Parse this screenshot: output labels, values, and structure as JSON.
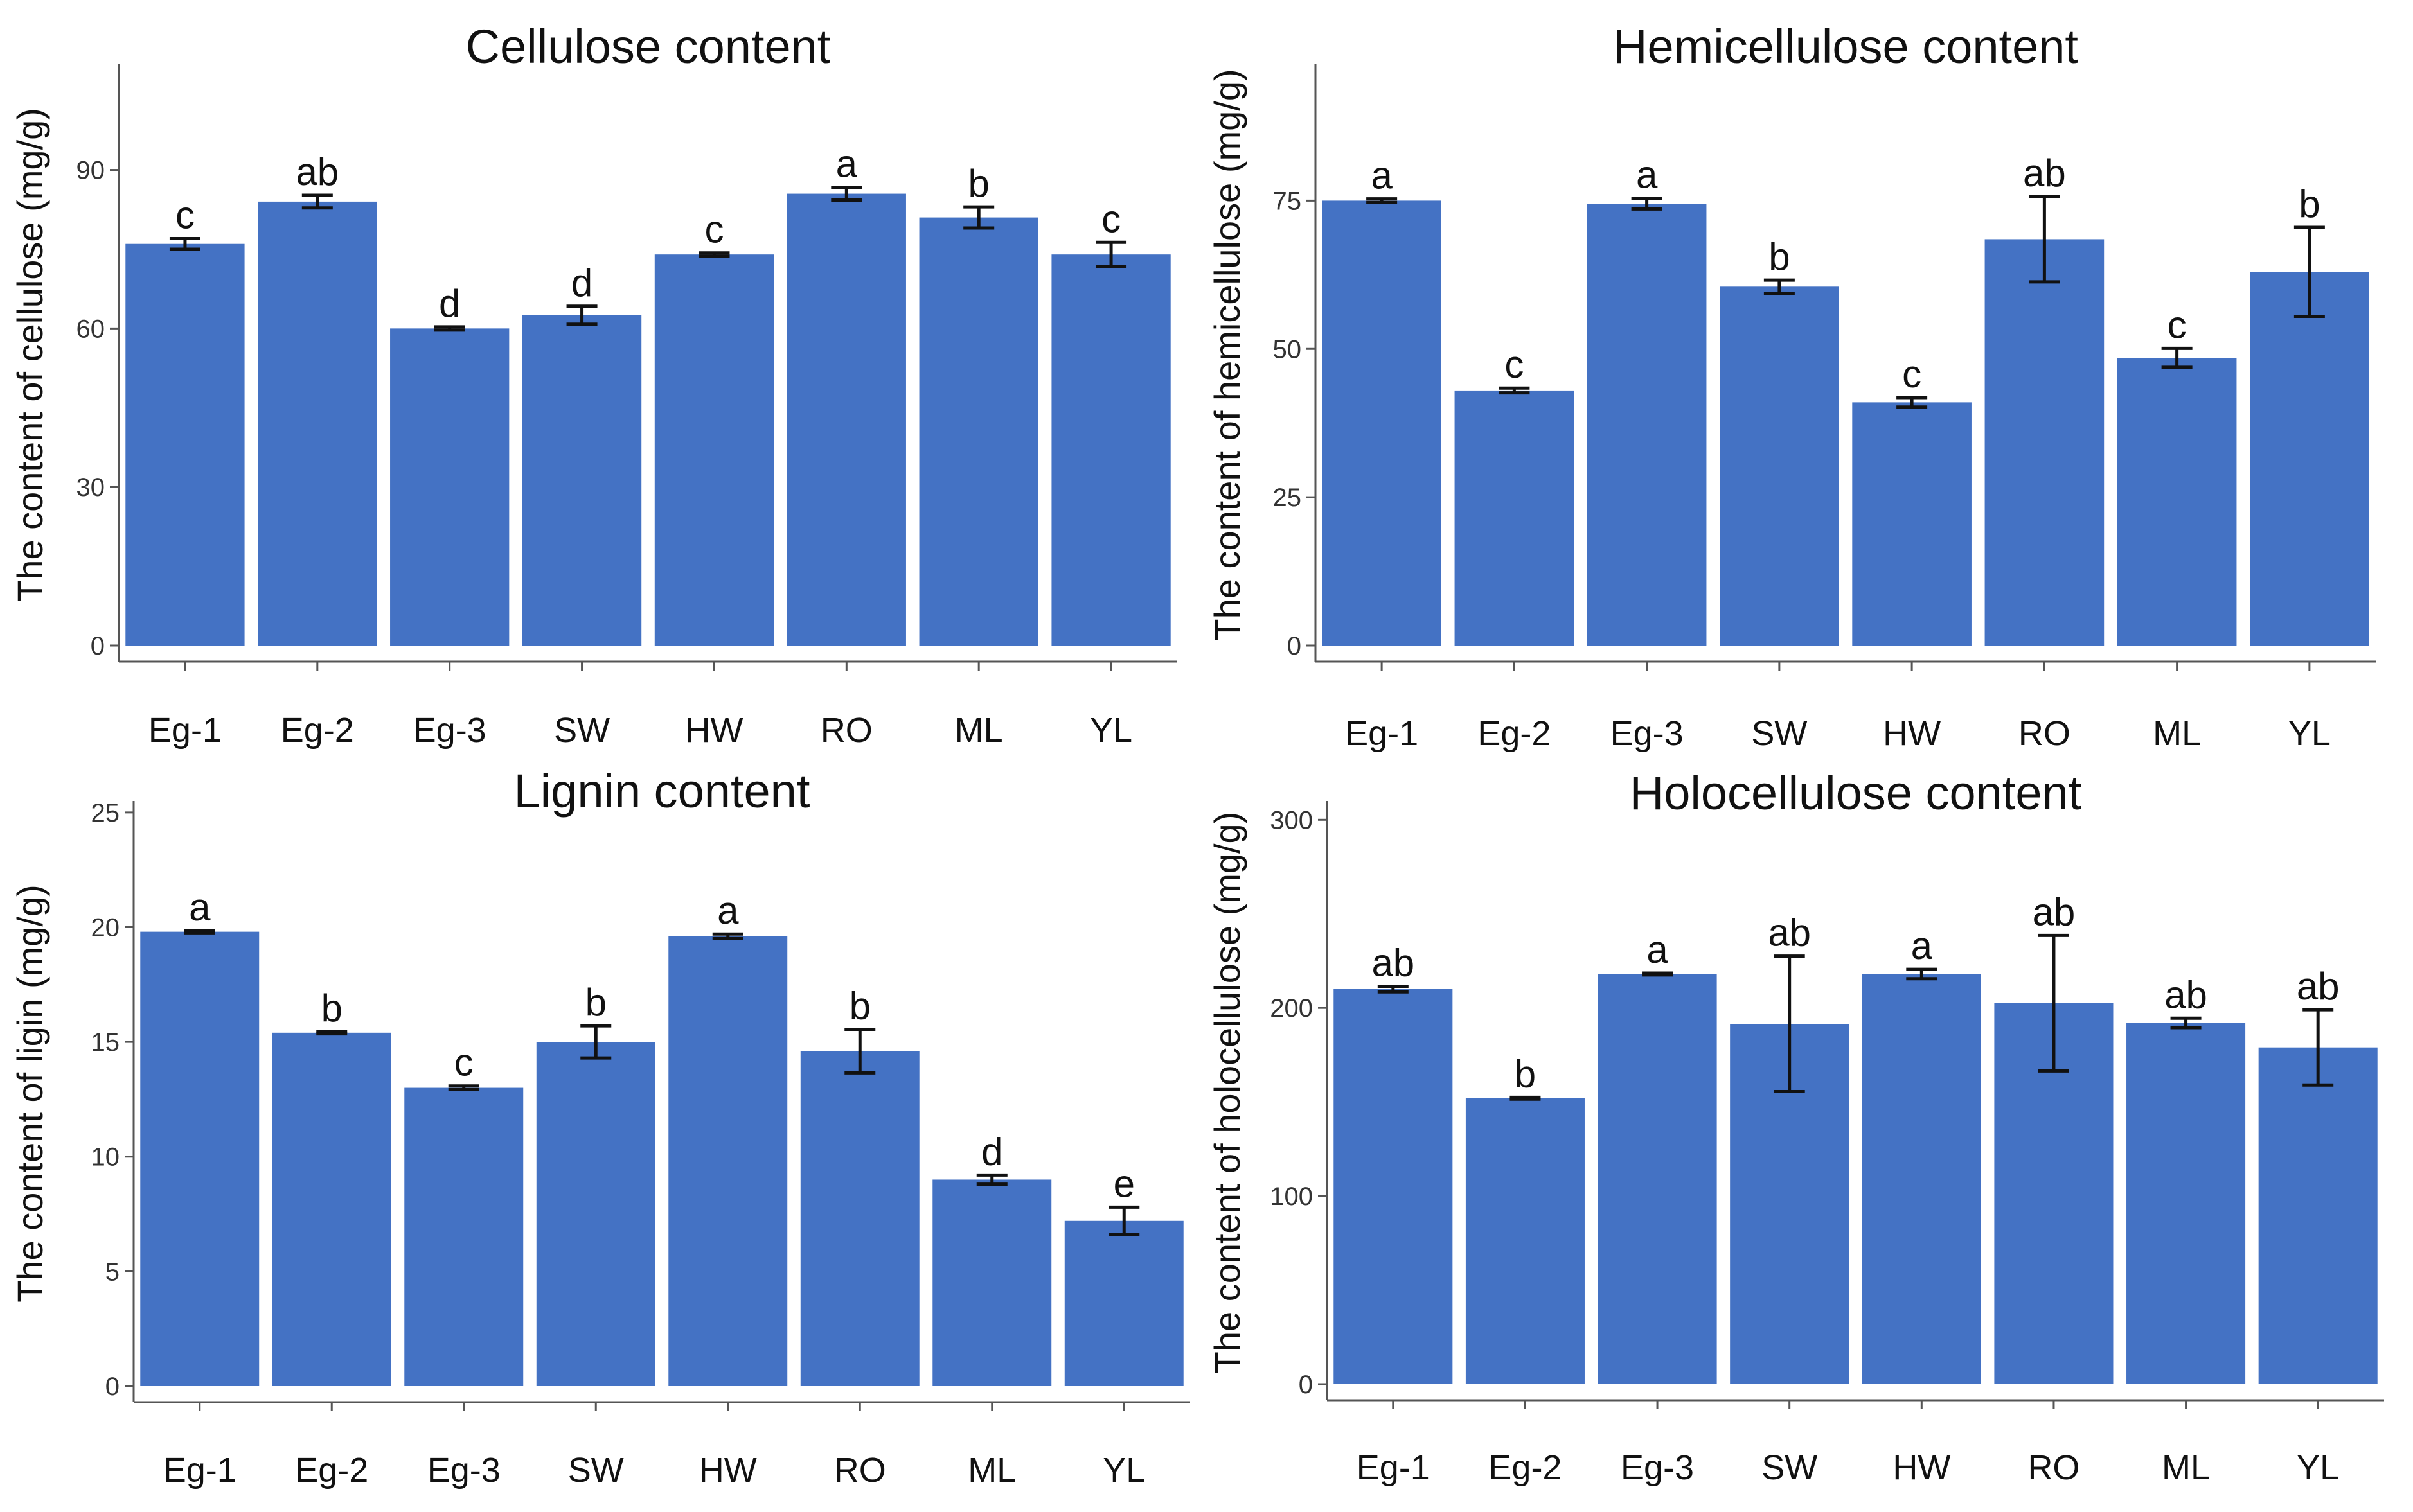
{
  "chart_data": [
    {
      "type": "bar",
      "title": "Cellulose content",
      "ylabel": "The content of cellulose (mg/g)",
      "xlabel": "",
      "ylim": [
        0,
        110
      ],
      "yticks": [
        0,
        30,
        60,
        90
      ],
      "categories": [
        "Eg-1",
        "Eg-2",
        "Eg-3",
        "SW",
        "HW",
        "RO",
        "ML",
        "YL"
      ],
      "values": [
        76,
        84,
        60,
        62.5,
        74,
        85.5,
        81,
        74
      ],
      "errors": [
        1,
        1.2,
        0.3,
        1.7,
        0.3,
        1.2,
        2,
        2.3
      ],
      "labels": [
        "c",
        "ab",
        "d",
        "d",
        "c",
        "a",
        "b",
        "c"
      ],
      "grid": false
    },
    {
      "type": "bar",
      "title": "Hemicellulose content",
      "ylabel": "The content of hemicellulose (mg/g)",
      "xlabel": "",
      "ylim": [
        0,
        98
      ],
      "yticks": [
        0,
        25,
        50,
        75
      ],
      "categories": [
        "Eg-1",
        "Eg-2",
        "Eg-3",
        "SW",
        "HW",
        "RO",
        "ML",
        "YL"
      ],
      "values": [
        75,
        43,
        74.5,
        60.5,
        41,
        68.5,
        48.5,
        63
      ],
      "errors": [
        0.3,
        0.4,
        0.9,
        1.1,
        0.8,
        7.2,
        1.6,
        7.5
      ],
      "labels": [
        "a",
        "c",
        "a",
        "b",
        "c",
        "ab",
        "c",
        "b"
      ],
      "grid": false
    },
    {
      "type": "bar",
      "title": "Lignin content",
      "ylabel": "The content of ligin (mg/g)",
      "xlabel": "",
      "ylim": [
        0,
        25.5
      ],
      "yticks": [
        0,
        5,
        10,
        15,
        20,
        25
      ],
      "categories": [
        "Eg-1",
        "Eg-2",
        "Eg-3",
        "SW",
        "HW",
        "RO",
        "ML",
        "YL"
      ],
      "values": [
        19.8,
        15.4,
        13,
        15,
        19.6,
        14.6,
        9,
        7.2
      ],
      "errors": [
        0.05,
        0.05,
        0.08,
        0.7,
        0.1,
        0.95,
        0.2,
        0.6
      ],
      "labels": [
        "a",
        "b",
        "c",
        "b",
        "a",
        "b",
        "d",
        "e"
      ],
      "grid": false
    },
    {
      "type": "bar",
      "title": "Holocellulose content",
      "ylabel": "The content of holocellulose (mg/g)",
      "xlabel": "",
      "ylim": [
        0,
        310
      ],
      "yticks": [
        0,
        100,
        200,
        300
      ],
      "categories": [
        "Eg-1",
        "Eg-2",
        "Eg-3",
        "SW",
        "HW",
        "RO",
        "ML",
        "YL"
      ],
      "values": [
        210,
        152,
        218,
        191.5,
        218,
        202.5,
        192,
        179
      ],
      "errors": [
        1.5,
        0.5,
        0.5,
        36,
        2.5,
        36,
        2.5,
        20
      ],
      "labels": [
        "ab",
        "b",
        "a",
        "ab",
        "a",
        "ab",
        "ab",
        "ab"
      ],
      "grid": false
    }
  ],
  "colors": {
    "bar": "#4472C4",
    "axis": "#555555",
    "text": "#111111"
  }
}
